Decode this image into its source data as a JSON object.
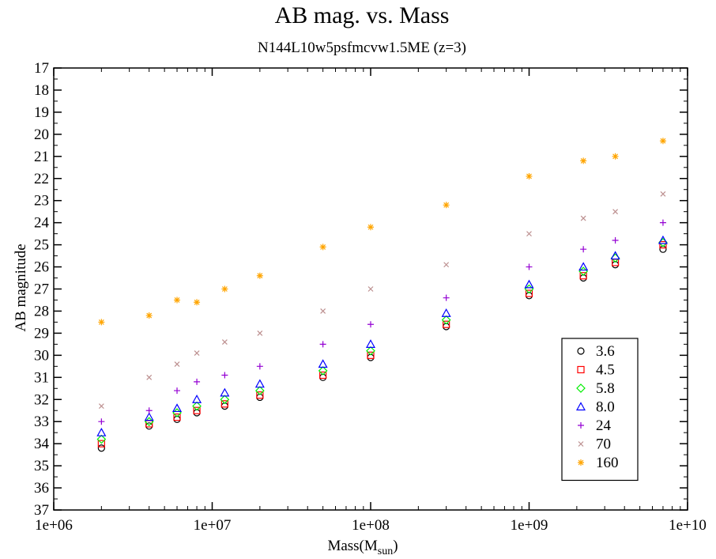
{
  "chart_data": {
    "type": "scatter",
    "title": "AB mag. vs. Mass",
    "subtitle": "N144L10w5psfmcvw1.5ME (z=3)",
    "xlabel": "Mass(M",
    "xlabel_sub": "sun",
    "xlabel_close": ")",
    "ylabel": "AB magnitude",
    "xscale": "log",
    "xlim": [
      1000000,
      10000000000
    ],
    "x_ticks": [
      {
        "value": 1000000,
        "label": "1e+06"
      },
      {
        "value": 10000000,
        "label": "1e+07"
      },
      {
        "value": 100000000,
        "label": "1e+08"
      },
      {
        "value": 1000000000,
        "label": "1e+09"
      },
      {
        "value": 10000000000,
        "label": "1e+10"
      }
    ],
    "ylim": [
      17,
      37
    ],
    "y_inverted": true,
    "y_ticks": [
      "17",
      "18",
      "19",
      "20",
      "21",
      "22",
      "23",
      "24",
      "25",
      "26",
      "27",
      "28",
      "29",
      "30",
      "31",
      "32",
      "33",
      "34",
      "35",
      "36",
      "37"
    ],
    "grid": false,
    "legend_position": "bottom-right",
    "series": [
      {
        "name": "3.6",
        "marker": "circle",
        "color": "#000000",
        "points": [
          [
            2000000,
            34.2
          ],
          [
            4000000,
            33.2
          ],
          [
            6000000,
            32.9
          ],
          [
            8000000,
            32.6
          ],
          [
            12000000,
            32.3
          ],
          [
            20000000,
            31.9
          ],
          [
            50000000,
            31.0
          ],
          [
            100000000,
            30.1
          ],
          [
            300000000,
            28.7
          ],
          [
            1000000000,
            27.3
          ],
          [
            2200000000,
            26.5
          ],
          [
            3500000000,
            25.9
          ],
          [
            7000000000,
            25.2
          ]
        ]
      },
      {
        "name": "4.5",
        "marker": "square",
        "color": "#ff0000",
        "points": [
          [
            2000000,
            34.0
          ],
          [
            4000000,
            33.1
          ],
          [
            6000000,
            32.8
          ],
          [
            8000000,
            32.5
          ],
          [
            12000000,
            32.2
          ],
          [
            20000000,
            31.8
          ],
          [
            50000000,
            30.9
          ],
          [
            100000000,
            30.0
          ],
          [
            300000000,
            28.6
          ],
          [
            1000000000,
            27.2
          ],
          [
            2200000000,
            26.4
          ],
          [
            3500000000,
            25.8
          ],
          [
            7000000000,
            25.0
          ]
        ]
      },
      {
        "name": "5.8",
        "marker": "diamond",
        "color": "#00ee00",
        "points": [
          [
            2000000,
            33.8
          ],
          [
            4000000,
            33.0
          ],
          [
            6000000,
            32.6
          ],
          [
            8000000,
            32.3
          ],
          [
            12000000,
            32.0
          ],
          [
            20000000,
            31.6
          ],
          [
            50000000,
            30.7
          ],
          [
            100000000,
            29.8
          ],
          [
            300000000,
            28.4
          ],
          [
            1000000000,
            27.0
          ],
          [
            2200000000,
            26.2
          ],
          [
            3500000000,
            25.6
          ],
          [
            7000000000,
            24.9
          ]
        ]
      },
      {
        "name": "8.0",
        "marker": "triangle",
        "color": "#0000ff",
        "points": [
          [
            2000000,
            33.5
          ],
          [
            4000000,
            32.8
          ],
          [
            6000000,
            32.4
          ],
          [
            8000000,
            32.0
          ],
          [
            12000000,
            31.7
          ],
          [
            20000000,
            31.3
          ],
          [
            50000000,
            30.4
          ],
          [
            100000000,
            29.5
          ],
          [
            300000000,
            28.1
          ],
          [
            1000000000,
            26.8
          ],
          [
            2200000000,
            26.0
          ],
          [
            3500000000,
            25.5
          ],
          [
            7000000000,
            24.8
          ]
        ]
      },
      {
        "name": "24",
        "marker": "plus",
        "color": "#9400d3",
        "points": [
          [
            2000000,
            33.0
          ],
          [
            4000000,
            32.5
          ],
          [
            6000000,
            31.6
          ],
          [
            8000000,
            31.2
          ],
          [
            12000000,
            30.9
          ],
          [
            20000000,
            30.5
          ],
          [
            50000000,
            29.5
          ],
          [
            100000000,
            28.6
          ],
          [
            300000000,
            27.4
          ],
          [
            1000000000,
            26.0
          ],
          [
            2200000000,
            25.2
          ],
          [
            3500000000,
            24.8
          ],
          [
            7000000000,
            24.0
          ]
        ]
      },
      {
        "name": "70",
        "marker": "x",
        "color": "#bc8f8f",
        "points": [
          [
            2000000,
            32.3
          ],
          [
            4000000,
            31.0
          ],
          [
            6000000,
            30.4
          ],
          [
            8000000,
            29.9
          ],
          [
            12000000,
            29.4
          ],
          [
            20000000,
            29.0
          ],
          [
            50000000,
            28.0
          ],
          [
            100000000,
            27.0
          ],
          [
            300000000,
            25.9
          ],
          [
            1000000000,
            24.5
          ],
          [
            2200000000,
            23.8
          ],
          [
            3500000000,
            23.5
          ],
          [
            7000000000,
            22.7
          ]
        ]
      },
      {
        "name": "160",
        "marker": "star",
        "color": "#ffa500",
        "points": [
          [
            2000000,
            28.5
          ],
          [
            4000000,
            28.2
          ],
          [
            6000000,
            27.5
          ],
          [
            8000000,
            27.6
          ],
          [
            12000000,
            27.0
          ],
          [
            20000000,
            26.4
          ],
          [
            50000000,
            25.1
          ],
          [
            100000000,
            24.2
          ],
          [
            300000000,
            23.2
          ],
          [
            1000000000,
            21.9
          ],
          [
            2200000000,
            21.2
          ],
          [
            3500000000,
            21.0
          ],
          [
            7000000000,
            20.3
          ]
        ]
      }
    ]
  }
}
